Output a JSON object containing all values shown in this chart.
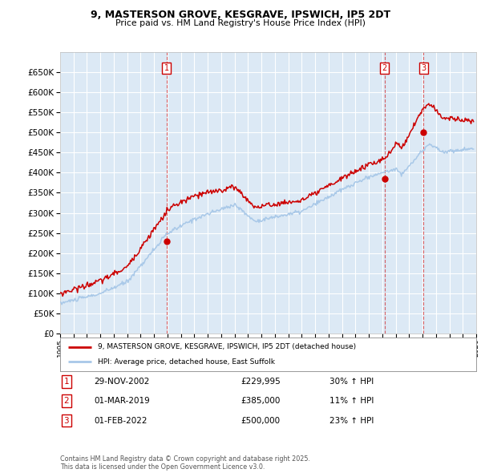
{
  "title": "9, MASTERSON GROVE, KESGRAVE, IPSWICH, IP5 2DT",
  "subtitle": "Price paid vs. HM Land Registry's House Price Index (HPI)",
  "hpi_label": "HPI: Average price, detached house, East Suffolk",
  "price_label": "9, MASTERSON GROVE, KESGRAVE, IPSWICH, IP5 2DT (detached house)",
  "fig_bg_color": "#ffffff",
  "plot_bg_color": "#dce9f5",
  "price_color": "#cc0000",
  "hpi_color": "#a8c8e8",
  "grid_color": "#ffffff",
  "ylim": [
    0,
    700000
  ],
  "yticks": [
    0,
    50000,
    100000,
    150000,
    200000,
    250000,
    300000,
    350000,
    400000,
    450000,
    500000,
    550000,
    600000,
    650000
  ],
  "sales": [
    {
      "num": 1,
      "date": "29-NOV-2002",
      "price": 229995,
      "hpi_pct": "30% ↑ HPI",
      "year": 2002.92
    },
    {
      "num": 2,
      "date": "01-MAR-2019",
      "price": 385000,
      "hpi_pct": "11% ↑ HPI",
      "year": 2019.17
    },
    {
      "num": 3,
      "date": "01-FEB-2022",
      "price": 500000,
      "hpi_pct": "23% ↑ HPI",
      "year": 2022.08
    }
  ],
  "footer": "Contains HM Land Registry data © Crown copyright and database right 2025.\nThis data is licensed under the Open Government Licence v3.0.",
  "xmin": 1995,
  "xmax": 2026
}
